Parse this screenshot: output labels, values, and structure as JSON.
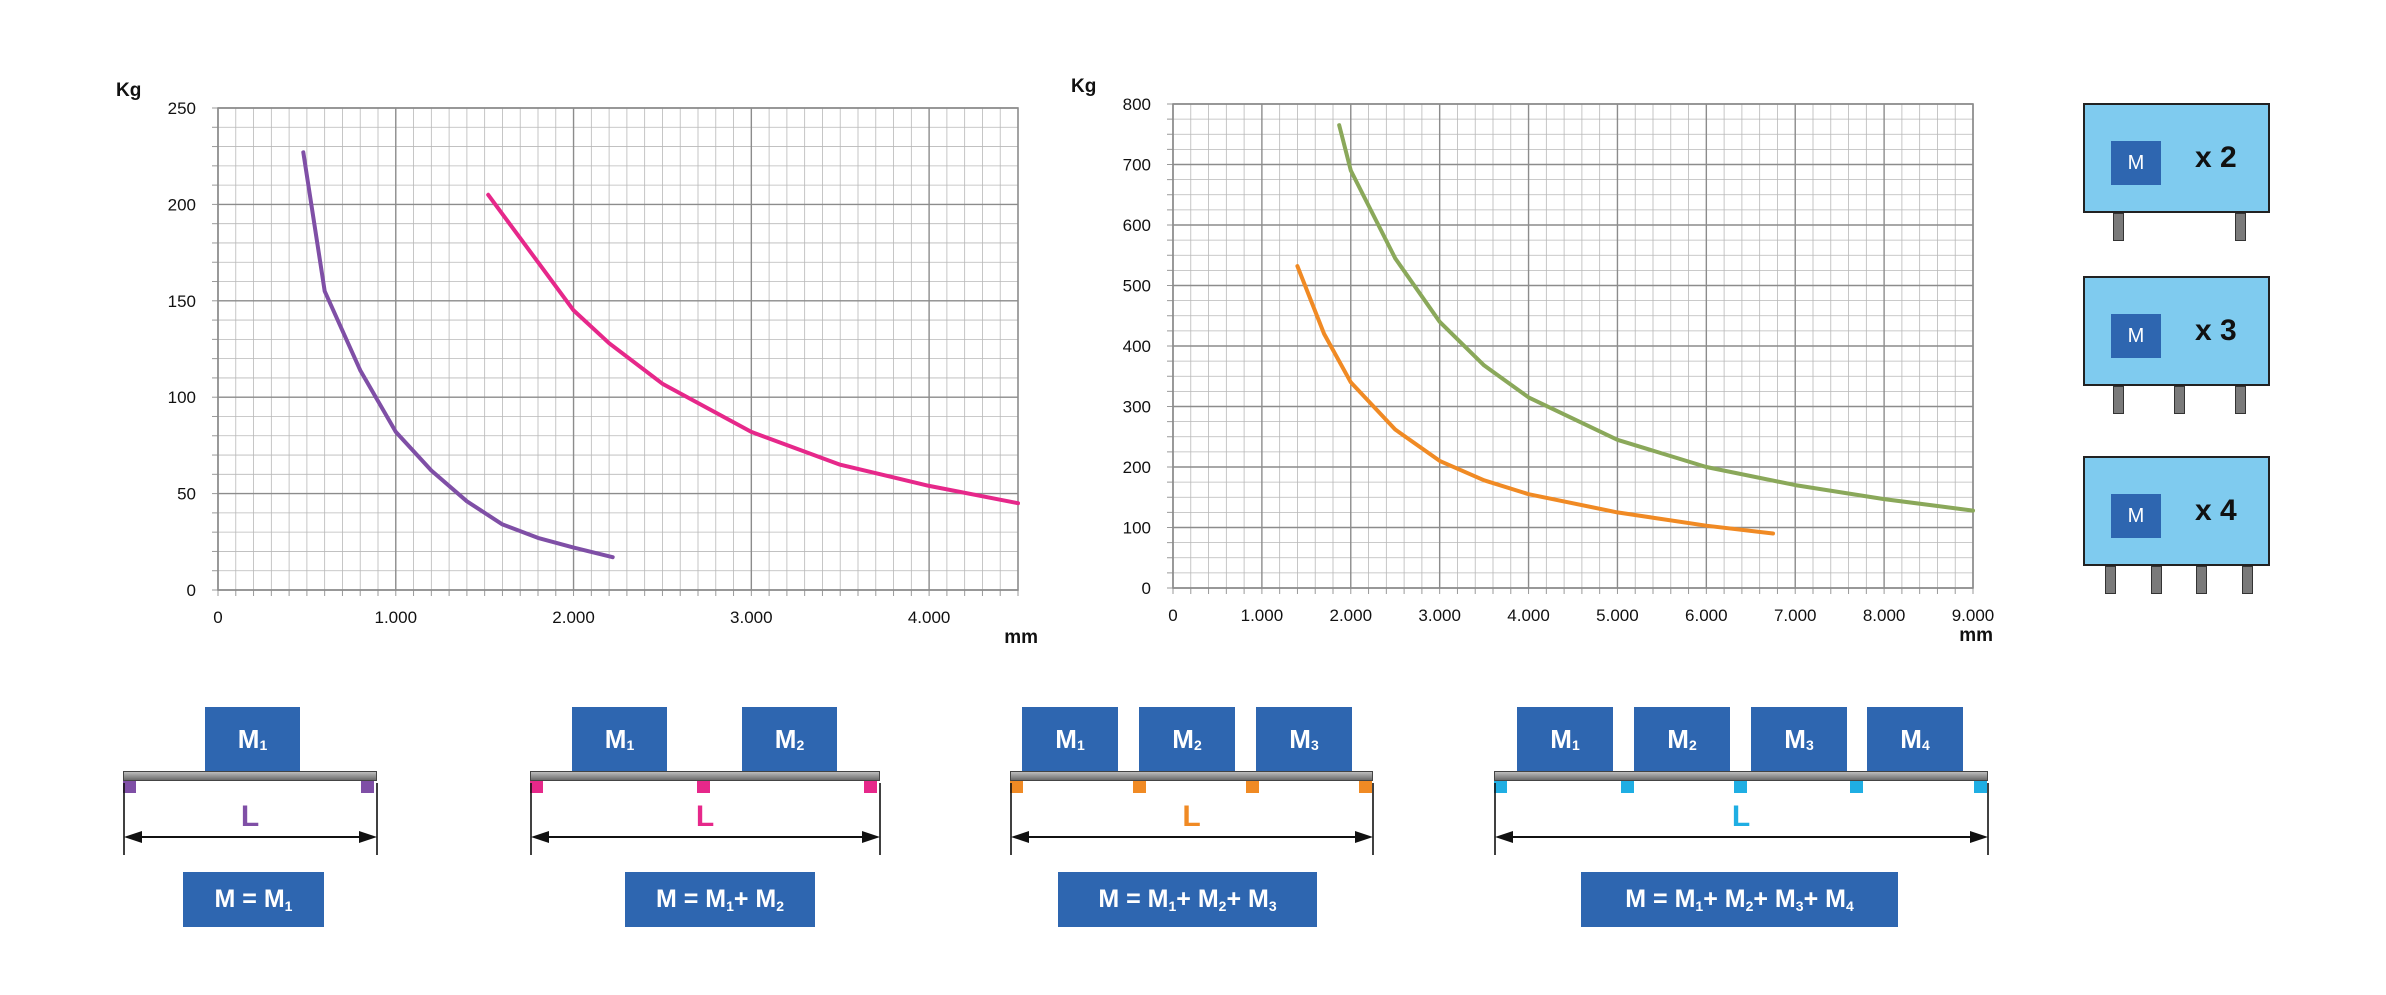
{
  "chart_data": [
    {
      "type": "line",
      "ylabel": "Kg",
      "xlabel": "mm",
      "xlim": [
        0,
        4500
      ],
      "ylim": [
        0,
        250
      ],
      "x_ticks": [
        0,
        1000,
        2000,
        3000,
        4000
      ],
      "x_tick_labels": [
        "0",
        "1.000",
        "2.000",
        "3.000",
        "4.000"
      ],
      "y_ticks": [
        0,
        50,
        100,
        150,
        200,
        250
      ],
      "y_tick_labels": [
        "0",
        "50",
        "100",
        "150",
        "200",
        "250"
      ],
      "grid": true,
      "series": [
        {
          "color": "#7f4fa6",
          "x": [
            480,
            600,
            800,
            1000,
            1200,
            1400,
            1600,
            1800,
            2000,
            2220
          ],
          "y": [
            227,
            155,
            114,
            82,
            62,
            46,
            34,
            27,
            22,
            17
          ]
        },
        {
          "color": "#e6288a",
          "x": [
            1520,
            1800,
            2000,
            2200,
            2500,
            3000,
            3500,
            4000,
            4500
          ],
          "y": [
            205,
            170,
            145,
            128,
            107,
            82,
            65,
            54,
            45
          ]
        }
      ]
    },
    {
      "type": "line",
      "ylabel": "Kg",
      "xlabel": "mm",
      "xlim": [
        0,
        9000
      ],
      "ylim": [
        0,
        800
      ],
      "x_ticks": [
        0,
        1000,
        2000,
        3000,
        4000,
        5000,
        6000,
        7000,
        8000,
        9000
      ],
      "x_tick_labels": [
        "0",
        "1.000",
        "2.000",
        "3.000",
        "4.000",
        "5.000",
        "6.000",
        "7.000",
        "8.000",
        "9.000"
      ],
      "y_ticks": [
        0,
        100,
        200,
        300,
        400,
        500,
        600,
        700,
        800
      ],
      "y_tick_labels": [
        "0",
        "100",
        "200",
        "300",
        "400",
        "500",
        "600",
        "700",
        "800"
      ],
      "grid": true,
      "series": [
        {
          "color": "#f08a24",
          "x": [
            1400,
            1700,
            2000,
            2500,
            3000,
            3500,
            4000,
            5000,
            6000,
            6750
          ],
          "y": [
            532,
            420,
            340,
            262,
            210,
            178,
            155,
            125,
            103,
            90
          ]
        },
        {
          "color": "#8aa85a",
          "x": [
            1870,
            2000,
            2500,
            3000,
            3500,
            4000,
            5000,
            6000,
            7000,
            8000,
            9000
          ],
          "y": [
            765,
            690,
            545,
            440,
            368,
            315,
            245,
            200,
            170,
            147,
            128
          ]
        }
      ]
    }
  ],
  "legend_boxes": [
    {
      "label": "M",
      "multiplier": "x 2",
      "legs": 2
    },
    {
      "label": "M",
      "multiplier": "x 3",
      "legs": 3
    },
    {
      "label": "M",
      "multiplier": "x 4",
      "legs": 4
    }
  ],
  "diagrams": [
    {
      "color": "#7f4fa6",
      "span_label": "L",
      "masses": [
        {
          "m": "M",
          "sub": "1"
        }
      ],
      "formula": {
        "lhs": "M = ",
        "terms": [
          {
            "m": "M",
            "sub": "1"
          }
        ]
      }
    },
    {
      "color": "#e6288a",
      "span_label": "L",
      "masses": [
        {
          "m": "M",
          "sub": "1"
        },
        {
          "m": "M",
          "sub": "2"
        }
      ],
      "formula": {
        "lhs": "M = ",
        "terms": [
          {
            "m": "M",
            "sub": "1"
          },
          {
            "m": "M",
            "sub": "2"
          }
        ]
      }
    },
    {
      "color": "#f08a24",
      "span_label": "L",
      "masses": [
        {
          "m": "M",
          "sub": "1"
        },
        {
          "m": "M",
          "sub": "2"
        },
        {
          "m": "M",
          "sub": "3"
        }
      ],
      "formula": {
        "lhs": "M = ",
        "terms": [
          {
            "m": "M",
            "sub": "1"
          },
          {
            "m": "M",
            "sub": "2"
          },
          {
            "m": "M",
            "sub": "3"
          }
        ]
      }
    },
    {
      "color": "#1faee3",
      "span_label": "L",
      "masses": [
        {
          "m": "M",
          "sub": "1"
        },
        {
          "m": "M",
          "sub": "2"
        },
        {
          "m": "M",
          "sub": "3"
        },
        {
          "m": "M",
          "sub": "4"
        }
      ],
      "formula": {
        "lhs": "M = ",
        "terms": [
          {
            "m": "M",
            "sub": "1"
          },
          {
            "m": "M",
            "sub": "2"
          },
          {
            "m": "M",
            "sub": "3"
          },
          {
            "m": "M",
            "sub": "4"
          }
        ]
      }
    }
  ],
  "colors": {
    "box_blue": "#2e66b0",
    "legend_fill": "#7fcbef",
    "grid": "#b8b8b8"
  }
}
